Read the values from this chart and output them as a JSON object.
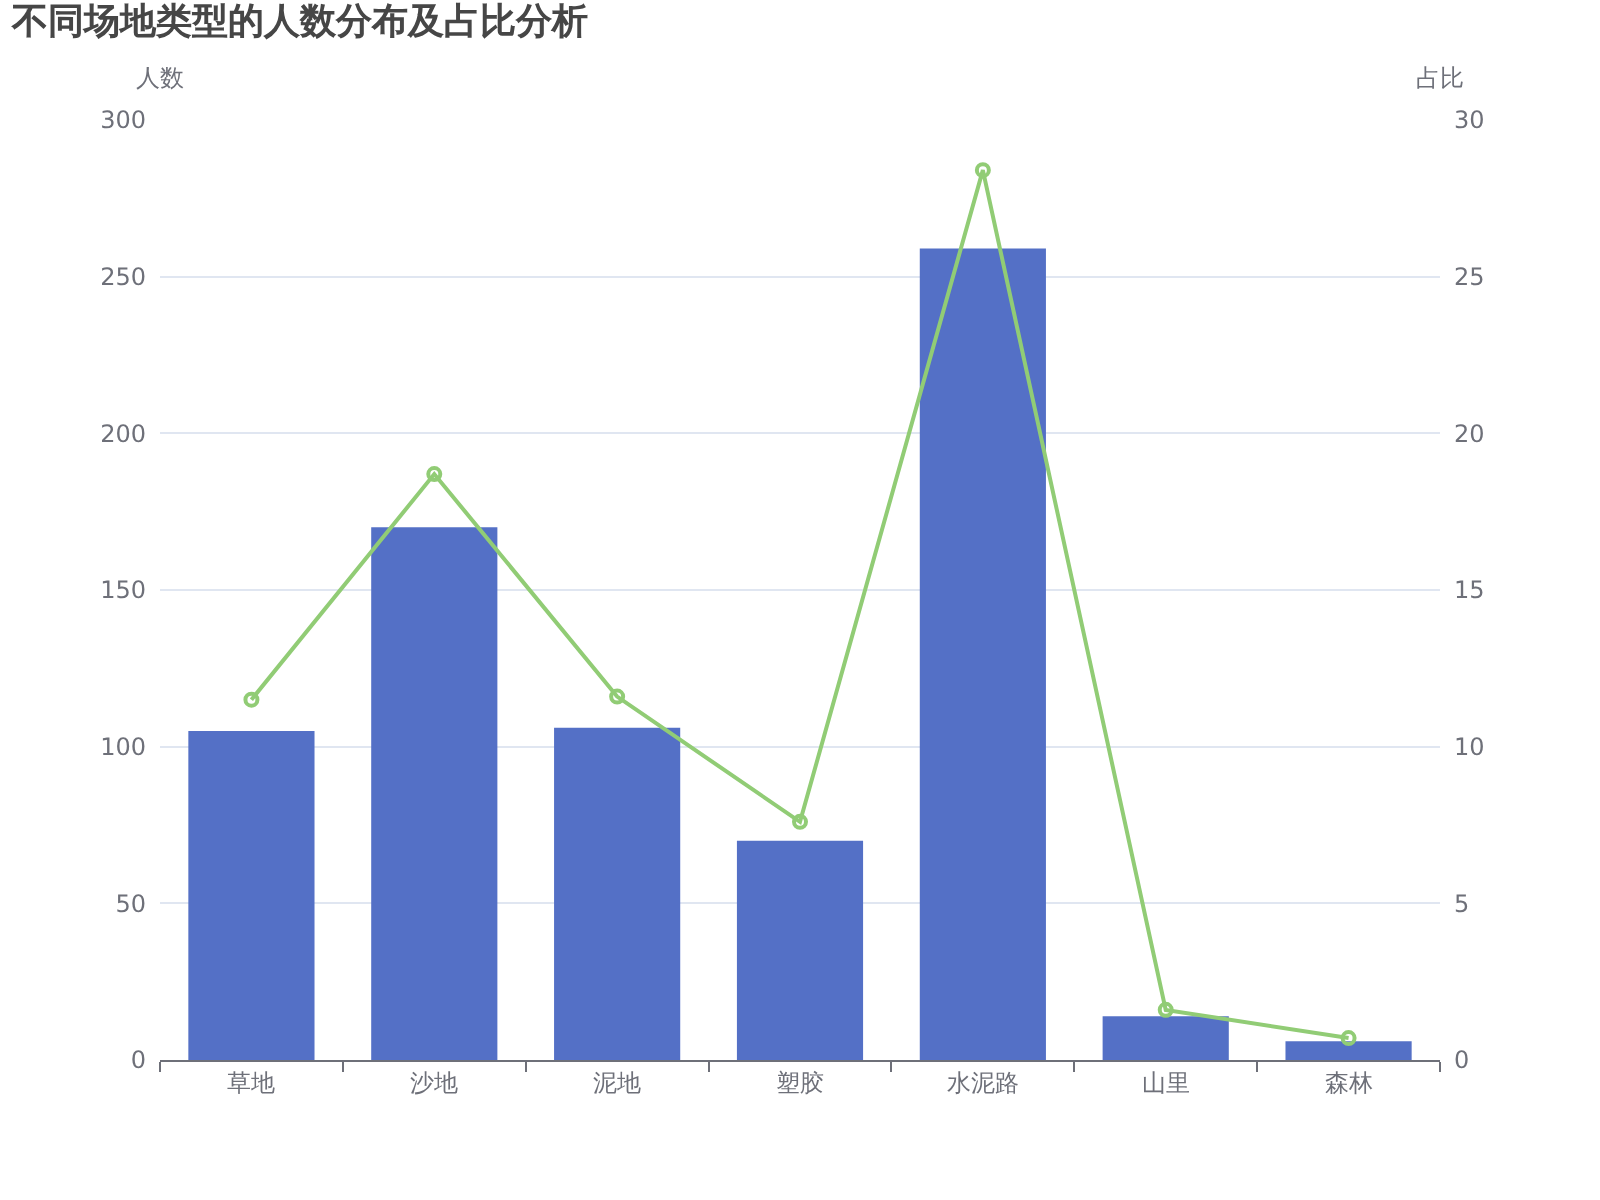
{
  "chart_data": {
    "type": "bar",
    "title": "不同场地类型的人数分布及占比分析",
    "ylabel": "人数",
    "y2label": "占比",
    "categories": [
      "草地",
      "沙地",
      "泥地",
      "塑胶",
      "水泥路",
      "山里",
      "森林"
    ],
    "series": [
      {
        "color": "#5470c6",
        "values": [
          105,
          170,
          106,
          70,
          259,
          14,
          6
        ]
      },
      {
        "type": "line",
        "axis": "y2",
        "color": "#91cc75",
        "marker": "circle",
        "line_style": "solid",
        "values": [
          11.5,
          18.7,
          11.6,
          7.6,
          28.4,
          1.6,
          0.7
        ]
      }
    ],
    "ylim": [
      0,
      300
    ],
    "yticks": [
      0,
      50,
      100,
      150,
      200,
      250,
      300
    ],
    "y2lim": [
      0,
      30
    ],
    "y2ticks": [
      0,
      5,
      10,
      15,
      20,
      25,
      30
    ],
    "grid": "y",
    "legend": false
  }
}
